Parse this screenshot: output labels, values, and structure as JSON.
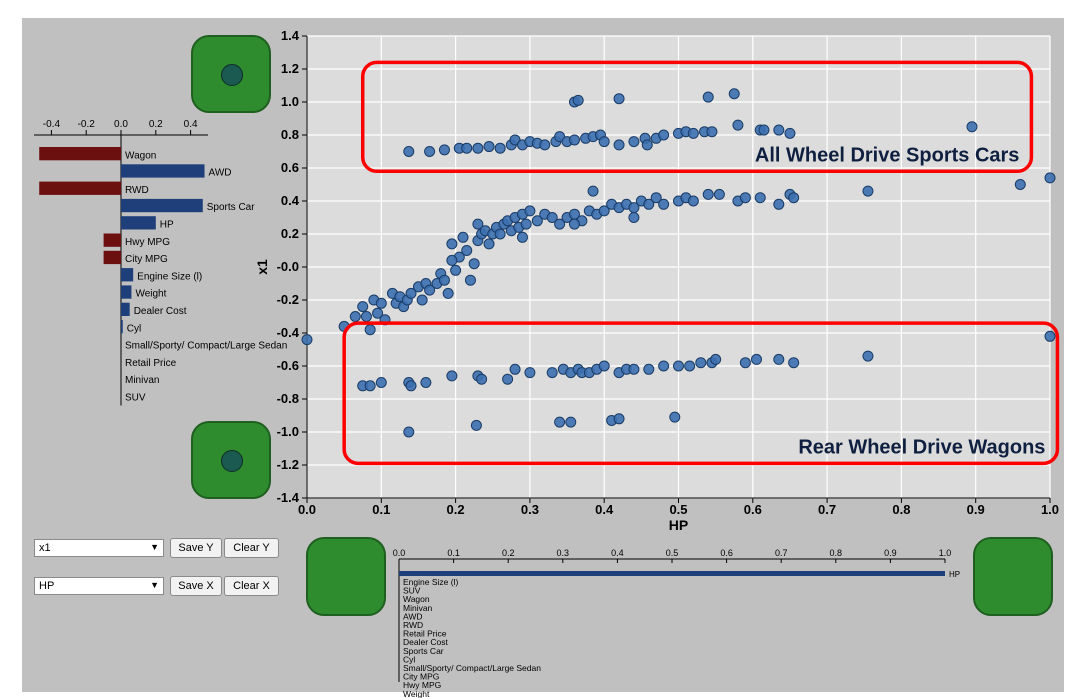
{
  "chart_data": {
    "type": "scatter",
    "xlabel": "HP",
    "ylabel": "x1",
    "xlim": [
      0.0,
      1.0
    ],
    "ylim": [
      -1.4,
      1.4
    ],
    "x_ticks": [
      "0.0",
      "0.1",
      "0.2",
      "0.3",
      "0.4",
      "0.5",
      "0.6",
      "0.7",
      "0.8",
      "0.9",
      "1.0"
    ],
    "y_ticks": [
      "1.4",
      "1.2",
      "1.0",
      "0.8",
      "0.6",
      "0.4",
      "0.2",
      "-0.0",
      "-0.2",
      "-0.4",
      "-0.6",
      "-0.8",
      "-1.0",
      "-1.2",
      "-1.4"
    ],
    "grid": true,
    "point_color": "#3b6fb0",
    "annotations": [
      {
        "text": "All Wheel Drive Sports Cars",
        "x0": 0.075,
        "x1": 0.975,
        "y0": 0.58,
        "y1": 1.24
      },
      {
        "text": "Rear Wheel Drive Wagons",
        "x0": 0.05,
        "x1": 1.01,
        "y0": -1.19,
        "y1": -0.34
      }
    ],
    "clusters": [
      {
        "name": "awd_sports",
        "points": [
          [
            0.137,
            0.7
          ],
          [
            0.165,
            0.7
          ],
          [
            0.185,
            0.71
          ],
          [
            0.205,
            0.72
          ],
          [
            0.215,
            0.72
          ],
          [
            0.23,
            0.72
          ],
          [
            0.245,
            0.73
          ],
          [
            0.26,
            0.72
          ],
          [
            0.275,
            0.74
          ],
          [
            0.28,
            0.77
          ],
          [
            0.29,
            0.74
          ],
          [
            0.3,
            0.76
          ],
          [
            0.31,
            0.75
          ],
          [
            0.32,
            0.74
          ],
          [
            0.335,
            0.76
          ],
          [
            0.34,
            0.79
          ],
          [
            0.35,
            0.76
          ],
          [
            0.36,
            0.77
          ],
          [
            0.375,
            0.78
          ],
          [
            0.385,
            0.79
          ],
          [
            0.395,
            0.8
          ],
          [
            0.4,
            0.76
          ],
          [
            0.42,
            0.74
          ],
          [
            0.44,
            0.76
          ],
          [
            0.455,
            0.78
          ],
          [
            0.47,
            0.78
          ],
          [
            0.48,
            0.8
          ],
          [
            0.5,
            0.81
          ],
          [
            0.51,
            0.82
          ],
          [
            0.52,
            0.81
          ],
          [
            0.535,
            0.82
          ],
          [
            0.545,
            0.82
          ],
          [
            0.36,
            1.0
          ],
          [
            0.365,
            1.01
          ],
          [
            0.42,
            1.02
          ],
          [
            0.54,
            1.03
          ],
          [
            0.575,
            1.05
          ],
          [
            0.58,
            0.86
          ],
          [
            0.61,
            0.83
          ],
          [
            0.615,
            0.83
          ],
          [
            0.635,
            0.83
          ],
          [
            0.65,
            0.81
          ],
          [
            0.895,
            0.85
          ],
          [
            0.458,
            0.74
          ]
        ]
      },
      {
        "name": "main_curve",
        "points": [
          [
            0.0,
            -0.44
          ],
          [
            0.05,
            -0.36
          ],
          [
            0.065,
            -0.3
          ],
          [
            0.075,
            -0.24
          ],
          [
            0.08,
            -0.3
          ],
          [
            0.085,
            -0.38
          ],
          [
            0.09,
            -0.2
          ],
          [
            0.095,
            -0.28
          ],
          [
            0.1,
            -0.22
          ],
          [
            0.105,
            -0.32
          ],
          [
            0.115,
            -0.16
          ],
          [
            0.12,
            -0.22
          ],
          [
            0.125,
            -0.18
          ],
          [
            0.13,
            -0.24
          ],
          [
            0.135,
            -0.2
          ],
          [
            0.14,
            -0.16
          ],
          [
            0.15,
            -0.12
          ],
          [
            0.155,
            -0.2
          ],
          [
            0.16,
            -0.1
          ],
          [
            0.165,
            -0.14
          ],
          [
            0.175,
            -0.1
          ],
          [
            0.18,
            -0.04
          ],
          [
            0.185,
            -0.08
          ],
          [
            0.19,
            -0.16
          ],
          [
            0.195,
            0.14
          ],
          [
            0.2,
            -0.02
          ],
          [
            0.205,
            0.06
          ],
          [
            0.21,
            0.18
          ],
          [
            0.215,
            0.1
          ],
          [
            0.22,
            -0.08
          ],
          [
            0.225,
            0.02
          ],
          [
            0.23,
            0.16
          ],
          [
            0.235,
            0.2
          ],
          [
            0.24,
            0.22
          ],
          [
            0.245,
            0.14
          ],
          [
            0.25,
            0.2
          ],
          [
            0.255,
            0.24
          ],
          [
            0.26,
            0.2
          ],
          [
            0.265,
            0.26
          ],
          [
            0.27,
            0.28
          ],
          [
            0.275,
            0.22
          ],
          [
            0.28,
            0.3
          ],
          [
            0.285,
            0.24
          ],
          [
            0.29,
            0.32
          ],
          [
            0.295,
            0.26
          ],
          [
            0.3,
            0.34
          ],
          [
            0.31,
            0.28
          ],
          [
            0.32,
            0.32
          ],
          [
            0.33,
            0.3
          ],
          [
            0.34,
            0.26
          ],
          [
            0.35,
            0.3
          ],
          [
            0.36,
            0.32
          ],
          [
            0.37,
            0.28
          ],
          [
            0.38,
            0.34
          ],
          [
            0.39,
            0.32
          ],
          [
            0.4,
            0.34
          ],
          [
            0.41,
            0.38
          ],
          [
            0.42,
            0.36
          ],
          [
            0.43,
            0.38
          ],
          [
            0.44,
            0.36
          ],
          [
            0.45,
            0.4
          ],
          [
            0.46,
            0.38
          ],
          [
            0.47,
            0.42
          ],
          [
            0.48,
            0.38
          ],
          [
            0.5,
            0.4
          ],
          [
            0.51,
            0.42
          ],
          [
            0.52,
            0.4
          ],
          [
            0.54,
            0.44
          ],
          [
            0.555,
            0.44
          ],
          [
            0.58,
            0.4
          ],
          [
            0.59,
            0.42
          ],
          [
            0.61,
            0.42
          ],
          [
            0.635,
            0.38
          ],
          [
            0.65,
            0.44
          ],
          [
            0.655,
            0.42
          ],
          [
            0.755,
            0.46
          ],
          [
            0.96,
            0.5
          ],
          [
            1.0,
            0.54
          ],
          [
            0.23,
            0.26
          ],
          [
            0.36,
            0.26
          ],
          [
            0.44,
            0.3
          ],
          [
            0.29,
            0.18
          ],
          [
            0.385,
            0.46
          ],
          [
            0.195,
            0.04
          ]
        ]
      },
      {
        "name": "rwd_wagons",
        "points": [
          [
            0.075,
            -0.72
          ],
          [
            0.085,
            -0.72
          ],
          [
            0.1,
            -0.7
          ],
          [
            0.137,
            -0.7
          ],
          [
            0.14,
            -0.72
          ],
          [
            0.16,
            -0.7
          ],
          [
            0.195,
            -0.66
          ],
          [
            0.23,
            -0.66
          ],
          [
            0.235,
            -0.68
          ],
          [
            0.27,
            -0.68
          ],
          [
            0.28,
            -0.62
          ],
          [
            0.3,
            -0.64
          ],
          [
            0.33,
            -0.64
          ],
          [
            0.345,
            -0.62
          ],
          [
            0.355,
            -0.64
          ],
          [
            0.365,
            -0.62
          ],
          [
            0.37,
            -0.64
          ],
          [
            0.38,
            -0.64
          ],
          [
            0.39,
            -0.62
          ],
          [
            0.4,
            -0.6
          ],
          [
            0.42,
            -0.64
          ],
          [
            0.43,
            -0.62
          ],
          [
            0.44,
            -0.62
          ],
          [
            0.46,
            -0.62
          ],
          [
            0.48,
            -0.6
          ],
          [
            0.5,
            -0.6
          ],
          [
            0.515,
            -0.6
          ],
          [
            0.53,
            -0.58
          ],
          [
            0.545,
            -0.58
          ],
          [
            0.55,
            -0.56
          ],
          [
            0.59,
            -0.58
          ],
          [
            0.605,
            -0.56
          ],
          [
            0.635,
            -0.56
          ],
          [
            0.655,
            -0.58
          ],
          [
            0.755,
            -0.54
          ],
          [
            1.0,
            -0.42
          ],
          [
            0.137,
            -1.0
          ],
          [
            0.228,
            -0.96
          ],
          [
            0.34,
            -0.94
          ],
          [
            0.355,
            -0.94
          ],
          [
            0.41,
            -0.93
          ],
          [
            0.42,
            -0.92
          ],
          [
            0.495,
            -0.91
          ]
        ]
      }
    ],
    "left_bar_chart": {
      "type": "bar",
      "orientation": "horizontal",
      "ticks": [
        "-0.4",
        "-0.2",
        "0.0",
        "0.2",
        "0.4"
      ],
      "xlim": [
        -0.5,
        0.5
      ],
      "positive_color": "#1f3f7a",
      "negative_color": "#6b0f0f",
      "categories": [
        "Wagon",
        "AWD",
        "RWD",
        "Sports Car",
        "HP",
        "Hwy MPG",
        "City MPG",
        "Engine Size (l)",
        "Weight",
        "Dealer Cost",
        "Cyl",
        "Small/Sporty/ Compact/Large Sedan",
        "Retail Price",
        "Minivan",
        "SUV"
      ],
      "values": [
        -0.47,
        0.48,
        -0.47,
        0.47,
        0.2,
        -0.1,
        -0.1,
        0.07,
        0.06,
        0.05,
        0.01,
        0.0,
        0.0,
        0.0,
        0.0
      ]
    },
    "bottom_bar_chart": {
      "type": "bar",
      "orientation": "horizontal",
      "ticks": [
        "0.0",
        "0.1",
        "0.2",
        "0.3",
        "0.4",
        "0.5",
        "0.6",
        "0.7",
        "0.8",
        "0.9",
        "1.0"
      ],
      "xlim": [
        0,
        1
      ],
      "top_bar": {
        "label": "HP",
        "value": 1.0
      },
      "categories": [
        "Engine Size (l)",
        "SUV",
        "Wagon",
        "Minivan",
        "AWD",
        "RWD",
        "Retail Price",
        "Dealer Cost",
        "Sports Car",
        "Cyl",
        "Small/Sporty/ Compact/Large Sedan",
        "City MPG",
        "Hwy MPG",
        "Weight"
      ],
      "values": [
        0,
        0,
        0,
        0,
        0,
        0,
        0,
        0,
        0,
        0,
        0,
        0,
        0,
        0
      ]
    }
  },
  "controls": {
    "y_select": "x1",
    "x_select": "HP",
    "save_y": "Save Y",
    "clear_y": "Clear Y",
    "save_x": "Save X",
    "clear_x": "Clear X",
    "dropdown_arrow": "▼"
  },
  "colors": {
    "handle_green": "#2e8b2e",
    "highlight_red": "#ff0000",
    "panel_gray": "#c0c0c0",
    "plot_bg": "#dcdcdc"
  }
}
